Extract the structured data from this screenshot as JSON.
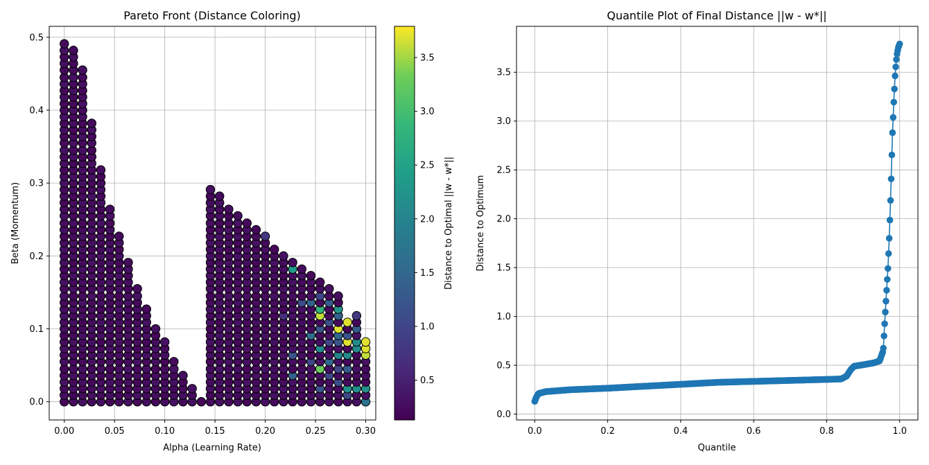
{
  "chart_data": [
    {
      "type": "scatter",
      "title": "Pareto Front (Distance Coloring)",
      "xlabel": "Alpha (Learning Rate)",
      "ylabel": "Beta (Momentum)",
      "xlim": [
        -0.015,
        0.31
      ],
      "ylim": [
        -0.025,
        0.515
      ],
      "xticks": [
        "0.00",
        "0.05",
        "0.10",
        "0.15",
        "0.20",
        "0.25",
        "0.30"
      ],
      "yticks": [
        "0.0",
        "0.1",
        "0.2",
        "0.3",
        "0.4",
        "0.5"
      ],
      "grid": true,
      "colormap": "viridis",
      "x_step": 0.00909,
      "y_step": 0.00909,
      "columns": [
        {
          "x": 0.0,
          "ymax": 0.491
        },
        {
          "x": 0.00909,
          "ymax": 0.482
        },
        {
          "x": 0.01818,
          "ymax": 0.455
        },
        {
          "x": 0.02727,
          "ymax": 0.382
        },
        {
          "x": 0.03636,
          "ymax": 0.318
        },
        {
          "x": 0.04545,
          "ymax": 0.264
        },
        {
          "x": 0.05455,
          "ymax": 0.227
        },
        {
          "x": 0.06364,
          "ymax": 0.191
        },
        {
          "x": 0.07273,
          "ymax": 0.155
        },
        {
          "x": 0.08182,
          "ymax": 0.127
        },
        {
          "x": 0.09091,
          "ymax": 0.1
        },
        {
          "x": 0.1,
          "ymax": 0.082
        },
        {
          "x": 0.10909,
          "ymax": 0.055
        },
        {
          "x": 0.11818,
          "ymax": 0.036
        },
        {
          "x": 0.12727,
          "ymax": 0.018
        },
        {
          "x": 0.13636,
          "ymax": 0.0
        },
        {
          "x": 0.14545,
          "ymax": 0.291
        },
        {
          "x": 0.15455,
          "ymax": 0.282
        },
        {
          "x": 0.16364,
          "ymax": 0.264
        },
        {
          "x": 0.17273,
          "ymax": 0.255
        },
        {
          "x": 0.18182,
          "ymax": 0.245
        },
        {
          "x": 0.19091,
          "ymax": 0.236
        },
        {
          "x": 0.2,
          "ymax": 0.227
        },
        {
          "x": 0.20909,
          "ymax": 0.209
        },
        {
          "x": 0.21818,
          "ymax": 0.2
        },
        {
          "x": 0.22727,
          "ymax": 0.191
        },
        {
          "x": 0.23636,
          "ymax": 0.182
        },
        {
          "x": 0.24545,
          "ymax": 0.173
        },
        {
          "x": 0.25455,
          "ymax": 0.164
        },
        {
          "x": 0.26364,
          "ymax": 0.155
        },
        {
          "x": 0.27273,
          "ymax": 0.145
        },
        {
          "x": 0.28182,
          "ymax": 0.109
        },
        {
          "x": 0.29091,
          "ymax": 0.118
        },
        {
          "x": 0.3,
          "ymax": 0.082
        }
      ],
      "highlight_points": [
        {
          "x": 0.22727,
          "y": 0.182,
          "c": 2.4
        },
        {
          "x": 0.2,
          "y": 0.227,
          "c": 0.8
        },
        {
          "x": 0.23636,
          "y": 0.136,
          "c": 1.1
        },
        {
          "x": 0.21818,
          "y": 0.118,
          "c": 0.7
        },
        {
          "x": 0.22727,
          "y": 0.064,
          "c": 1.2
        },
        {
          "x": 0.22727,
          "y": 0.036,
          "c": 1.4
        },
        {
          "x": 0.24545,
          "y": 0.136,
          "c": 1.4
        },
        {
          "x": 0.24545,
          "y": 0.091,
          "c": 1.6
        },
        {
          "x": 0.24545,
          "y": 0.055,
          "c": 1.0
        },
        {
          "x": 0.25455,
          "y": 0.145,
          "c": 1.0
        },
        {
          "x": 0.25455,
          "y": 0.127,
          "c": 2.8
        },
        {
          "x": 0.25455,
          "y": 0.118,
          "c": 3.6
        },
        {
          "x": 0.25455,
          "y": 0.1,
          "c": 1.2
        },
        {
          "x": 0.25455,
          "y": 0.073,
          "c": 2.1
        },
        {
          "x": 0.25455,
          "y": 0.045,
          "c": 3.3
        },
        {
          "x": 0.25455,
          "y": 0.018,
          "c": 1.2
        },
        {
          "x": 0.26364,
          "y": 0.136,
          "c": 1.3
        },
        {
          "x": 0.26364,
          "y": 0.109,
          "c": 1.1
        },
        {
          "x": 0.26364,
          "y": 0.082,
          "c": 1.0
        },
        {
          "x": 0.26364,
          "y": 0.055,
          "c": 1.5
        },
        {
          "x": 0.26364,
          "y": 0.036,
          "c": 1.0
        },
        {
          "x": 0.27273,
          "y": 0.127,
          "c": 2.3
        },
        {
          "x": 0.27273,
          "y": 0.118,
          "c": 1.4
        },
        {
          "x": 0.27273,
          "y": 0.1,
          "c": 3.7
        },
        {
          "x": 0.27273,
          "y": 0.091,
          "c": 1.5
        },
        {
          "x": 0.27273,
          "y": 0.082,
          "c": 1.2
        },
        {
          "x": 0.27273,
          "y": 0.064,
          "c": 2.0
        },
        {
          "x": 0.27273,
          "y": 0.045,
          "c": 1.0
        },
        {
          "x": 0.27273,
          "y": 0.027,
          "c": 1.1
        },
        {
          "x": 0.28182,
          "y": 0.109,
          "c": 3.7
        },
        {
          "x": 0.28182,
          "y": 0.091,
          "c": 1.2
        },
        {
          "x": 0.28182,
          "y": 0.082,
          "c": 3.7
        },
        {
          "x": 0.28182,
          "y": 0.064,
          "c": 2.1
        },
        {
          "x": 0.28182,
          "y": 0.045,
          "c": 1.3
        },
        {
          "x": 0.28182,
          "y": 0.018,
          "c": 2.2
        },
        {
          "x": 0.28182,
          "y": 0.009,
          "c": 1.0
        },
        {
          "x": 0.29091,
          "y": 0.118,
          "c": 0.8
        },
        {
          "x": 0.29091,
          "y": 0.1,
          "c": 1.3
        },
        {
          "x": 0.29091,
          "y": 0.082,
          "c": 2.1
        },
        {
          "x": 0.29091,
          "y": 0.073,
          "c": 2.1
        },
        {
          "x": 0.29091,
          "y": 0.018,
          "c": 2.2
        },
        {
          "x": 0.3,
          "y": 0.082,
          "c": 3.7
        },
        {
          "x": 0.3,
          "y": 0.073,
          "c": 3.7
        },
        {
          "x": 0.3,
          "y": 0.064,
          "c": 3.6
        },
        {
          "x": 0.3,
          "y": 0.018,
          "c": 2.2
        },
        {
          "x": 0.3,
          "y": 0.0,
          "c": 1.7
        }
      ],
      "colorbar": {
        "label": "Distance to Optimal ||w - w*||",
        "range": [
          0.13,
          3.79
        ],
        "ticks": [
          "0.5",
          "1.0",
          "1.5",
          "2.0",
          "2.5",
          "3.0",
          "3.5"
        ],
        "tick_values": [
          0.5,
          1.0,
          1.5,
          2.0,
          2.5,
          3.0,
          3.5
        ]
      }
    },
    {
      "type": "line",
      "title": "Quantile Plot of Final Distance ||w - w*||",
      "xlabel": "Quantile",
      "ylabel": "Distance to Optimum",
      "xlim": [
        -0.05,
        1.05
      ],
      "ylim": [
        -0.06,
        3.97
      ],
      "xticks": [
        "0.0",
        "0.2",
        "0.4",
        "0.6",
        "0.8",
        "1.0"
      ],
      "yticks": [
        "0.0",
        "0.5",
        "1.0",
        "1.5",
        "2.0",
        "2.5",
        "3.0",
        "3.5"
      ],
      "grid": true,
      "color": "#1f77b4",
      "quantile_profile": [
        [
          0.0,
          0.13
        ],
        [
          0.004,
          0.17
        ],
        [
          0.01,
          0.21
        ],
        [
          0.03,
          0.23
        ],
        [
          0.1,
          0.25
        ],
        [
          0.2,
          0.265
        ],
        [
          0.3,
          0.285
        ],
        [
          0.4,
          0.305
        ],
        [
          0.5,
          0.325
        ],
        [
          0.6,
          0.335
        ],
        [
          0.7,
          0.345
        ],
        [
          0.8,
          0.355
        ],
        [
          0.84,
          0.36
        ],
        [
          0.855,
          0.39
        ],
        [
          0.865,
          0.45
        ],
        [
          0.875,
          0.49
        ],
        [
          0.9,
          0.505
        ],
        [
          0.93,
          0.525
        ],
        [
          0.945,
          0.545
        ],
        [
          0.955,
          0.65
        ],
        [
          0.96,
          1.0
        ],
        [
          0.964,
          1.25
        ],
        [
          0.968,
          1.5
        ],
        [
          0.972,
          1.85
        ],
        [
          0.976,
          2.3
        ],
        [
          0.98,
          2.85
        ],
        [
          0.984,
          3.2
        ],
        [
          0.988,
          3.5
        ],
        [
          0.992,
          3.67
        ],
        [
          0.996,
          3.75
        ],
        [
          1.0,
          3.79
        ]
      ]
    }
  ]
}
